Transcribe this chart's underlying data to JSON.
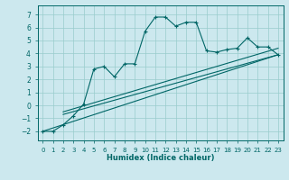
{
  "xlabel": "Humidex (Indice chaleur)",
  "xlim": [
    -0.5,
    23.5
  ],
  "ylim": [
    -2.7,
    7.7
  ],
  "xticks": [
    0,
    1,
    2,
    3,
    4,
    5,
    6,
    7,
    8,
    9,
    10,
    11,
    12,
    13,
    14,
    15,
    16,
    17,
    18,
    19,
    20,
    21,
    22,
    23
  ],
  "yticks": [
    -2,
    -1,
    0,
    1,
    2,
    3,
    4,
    5,
    6,
    7
  ],
  "bg_color": "#cce8ee",
  "line_color": "#006666",
  "grid_color": "#99cccc",
  "line1_x": [
    0,
    1,
    2,
    3,
    4,
    5,
    6,
    7,
    8,
    9,
    10,
    11,
    12,
    13,
    14,
    15,
    16,
    17,
    18,
    19,
    20,
    21,
    22,
    23
  ],
  "line1_y": [
    -2.0,
    -2.0,
    -1.5,
    -0.8,
    0.1,
    2.8,
    3.0,
    2.2,
    3.2,
    3.2,
    5.7,
    6.8,
    6.8,
    6.1,
    6.4,
    6.4,
    4.2,
    4.1,
    4.3,
    4.4,
    5.2,
    4.5,
    4.5,
    3.9
  ],
  "line2_x": [
    0,
    23
  ],
  "line2_y": [
    -2.0,
    3.9
  ],
  "line3_x": [
    2,
    23
  ],
  "line3_y": [
    -0.5,
    4.4
  ],
  "line4_x": [
    2,
    23
  ],
  "line4_y": [
    -0.7,
    3.9
  ]
}
